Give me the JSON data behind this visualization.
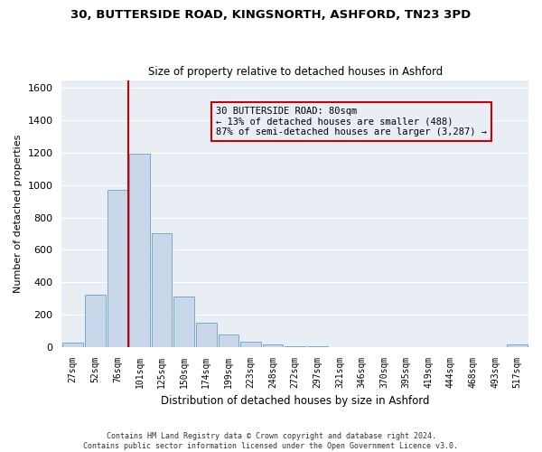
{
  "title_line1": "30, BUTTERSIDE ROAD, KINGSNORTH, ASHFORD, TN23 3PD",
  "title_line2": "Size of property relative to detached houses in Ashford",
  "xlabel": "Distribution of detached houses by size in Ashford",
  "ylabel": "Number of detached properties",
  "bar_labels": [
    "27sqm",
    "52sqm",
    "76sqm",
    "101sqm",
    "125sqm",
    "150sqm",
    "174sqm",
    "199sqm",
    "223sqm",
    "248sqm",
    "272sqm",
    "297sqm",
    "321sqm",
    "346sqm",
    "370sqm",
    "395sqm",
    "419sqm",
    "444sqm",
    "468sqm",
    "493sqm",
    "517sqm"
  ],
  "bar_values": [
    25,
    320,
    970,
    1195,
    700,
    310,
    150,
    75,
    30,
    15,
    5,
    2,
    1,
    0,
    0,
    0,
    0,
    0,
    0,
    0,
    15
  ],
  "bar_color": "#c8d8ea",
  "bar_edgecolor": "#7aaac8",
  "ylim": [
    0,
    1650
  ],
  "yticks": [
    0,
    200,
    400,
    600,
    800,
    1000,
    1200,
    1400,
    1600
  ],
  "annotation_line1": "30 BUTTERSIDE ROAD: 80sqm",
  "annotation_line2": "← 13% of detached houses are smaller (488)",
  "annotation_line3": "87% of semi-detached houses are larger (3,287) →",
  "vline_color": "#cc0000",
  "vline_x_index": 2.5,
  "footer_line1": "Contains HM Land Registry data © Crown copyright and database right 2024.",
  "footer_line2": "Contains public sector information licensed under the Open Government Licence v3.0.",
  "bg_color": "#ffffff",
  "plot_bg_color": "#e8eef4",
  "grid_color": "#ffffff"
}
